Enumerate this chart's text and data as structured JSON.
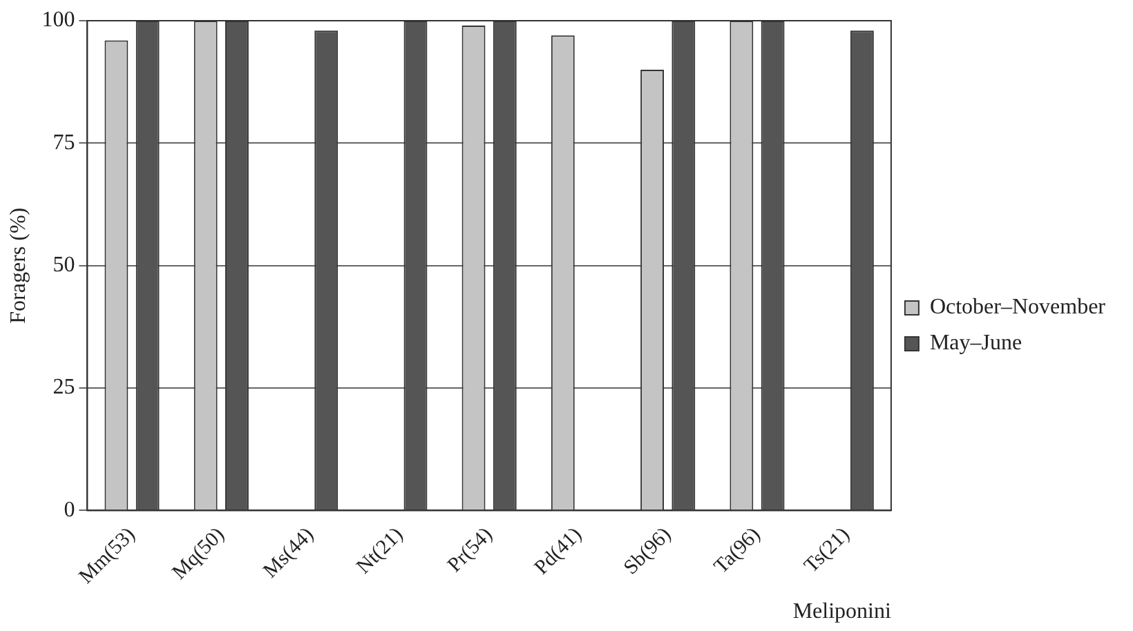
{
  "chart_data": {
    "type": "bar",
    "xlabel": "Meliponini",
    "ylabel": "Foragers (%)",
    "categories": [
      "Mm(53)",
      "Mq(50)",
      "Ms(44)",
      "Nt(21)",
      "Pr(54)",
      "Pd(41)",
      "Sb(96)",
      "Ta(96)",
      "Ts(21)"
    ],
    "series": [
      {
        "name": "October–November",
        "color": "#c4c4c4",
        "values": [
          96,
          100,
          null,
          null,
          99,
          97,
          90,
          100,
          null
        ]
      },
      {
        "name": "May–June",
        "color": "#555555",
        "values": [
          100,
          100,
          98,
          100,
          100,
          null,
          100,
          100,
          98
        ]
      }
    ],
    "ylim": [
      0,
      100
    ],
    "yticks": [
      0,
      25,
      50,
      75,
      100
    ],
    "grid": "y",
    "legend": "right"
  }
}
